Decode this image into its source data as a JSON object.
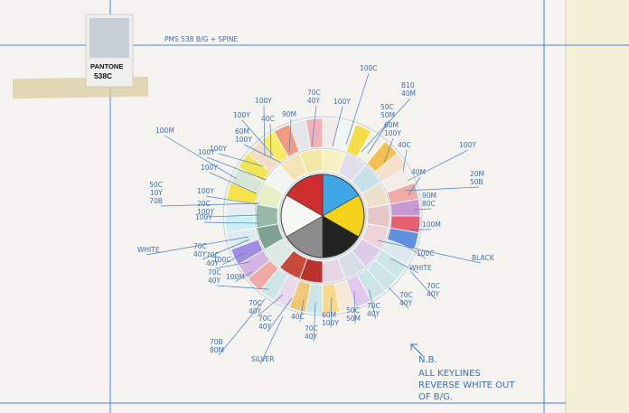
{
  "header": {
    "pms_note": "PMS 538 B/G + SPINE"
  },
  "swatch": {
    "brand": "PANTONE",
    "code": "538C",
    "color": "#c9cfd6"
  },
  "colors": {
    "paper": "#f4f3ef",
    "side_panel": "#f4efd7",
    "ink": "#3c6fb4",
    "tape": "#d9cc9c",
    "leader": "#4a7fc1"
  },
  "callouts": [
    "100M",
    "100Y",
    "40C",
    "90M",
    "70C 40Y",
    "100Y",
    "100C",
    "B10 40M",
    "50C 50M",
    "60M 100Y",
    "40C",
    "100Y",
    "20M 50B",
    "40M",
    "90M 80C",
    "100M",
    "100C",
    "BLACK",
    "WHITE",
    "70C 40Y",
    "70C 40Y",
    "70C 40Y",
    "50C 50M",
    "60M 100Y",
    "70C 40Y",
    "40C",
    "70C 40Y",
    "70C 40Y",
    "SILVER",
    "70B 80M",
    "70C 40Y",
    "100M",
    "70C 40Y",
    "100C",
    "70C 40Y",
    "WHITE",
    "100Y",
    "20C 100Y",
    "100Y",
    "100Y",
    "100Y",
    "50C 10Y 70B",
    "100Y",
    "60M 100Y",
    "100Y"
  ],
  "notes": {
    "nb": "N.B.",
    "line1": "ALL KEYLINES",
    "line2": "REVERSE WHITE OUT",
    "line3": "OF B/G."
  }
}
